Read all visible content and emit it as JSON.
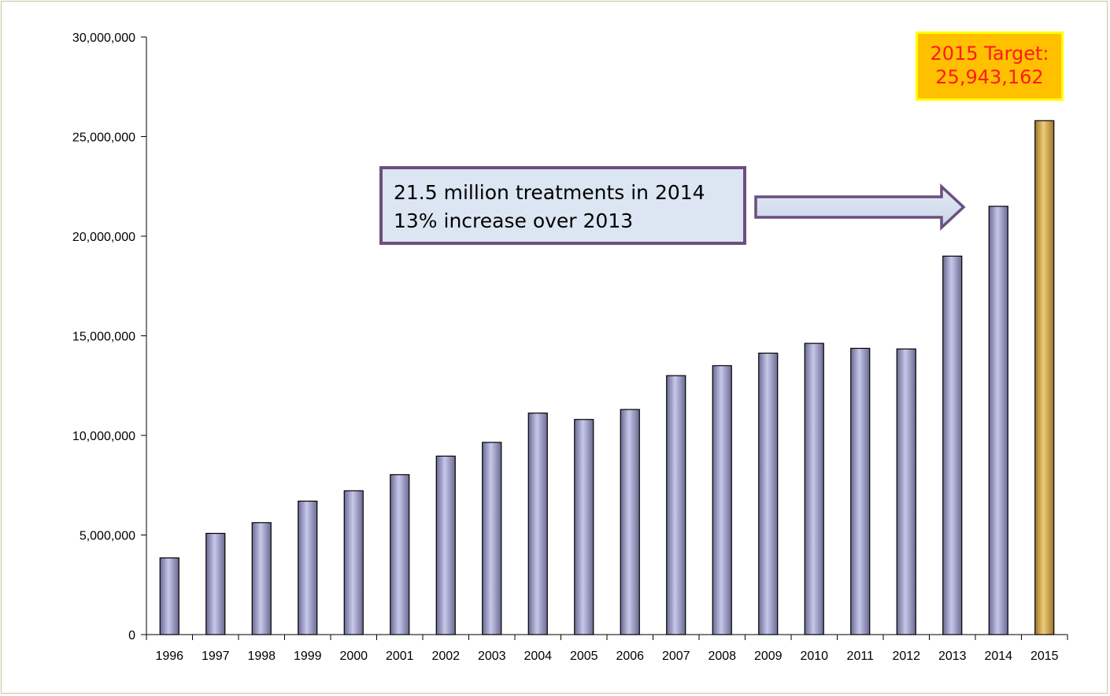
{
  "chart_data": {
    "type": "bar",
    "title": "",
    "xlabel": "",
    "ylabel": "",
    "ylim": [
      0,
      30000000
    ],
    "yticks": [
      0,
      5000000,
      10000000,
      15000000,
      20000000,
      25000000,
      30000000
    ],
    "ytick_labels": [
      "0",
      "5,000,000",
      "10,000,000",
      "15,000,000",
      "20,000,000",
      "25,000,000",
      "30,000,000"
    ],
    "categories": [
      "1996",
      "1997",
      "1998",
      "1999",
      "2000",
      "2001",
      "2002",
      "2003",
      "2004",
      "2005",
      "2006",
      "2007",
      "2008",
      "2009",
      "2010",
      "2011",
      "2012",
      "2013",
      "2014",
      "2015"
    ],
    "values": [
      3850000,
      5080000,
      5620000,
      6700000,
      7220000,
      8030000,
      8960000,
      9650000,
      11120000,
      10800000,
      11300000,
      13000000,
      13500000,
      14130000,
      14620000,
      14370000,
      14340000,
      19000000,
      21500000,
      25800000
    ],
    "grid": false,
    "legend": "none",
    "colors": {
      "bar": "#b4b4dc",
      "bar_dark": "#54547a",
      "highlight_bar": "#d4aa55",
      "highlight_dark": "#7a5a1a"
    },
    "highlight_category": "2015",
    "annotations": {
      "callout_lines": [
        "21.5 million treatments in 2014",
        "13% increase over 2013"
      ],
      "target_lines": [
        "2015 Target:",
        "25,943,162"
      ]
    }
  }
}
